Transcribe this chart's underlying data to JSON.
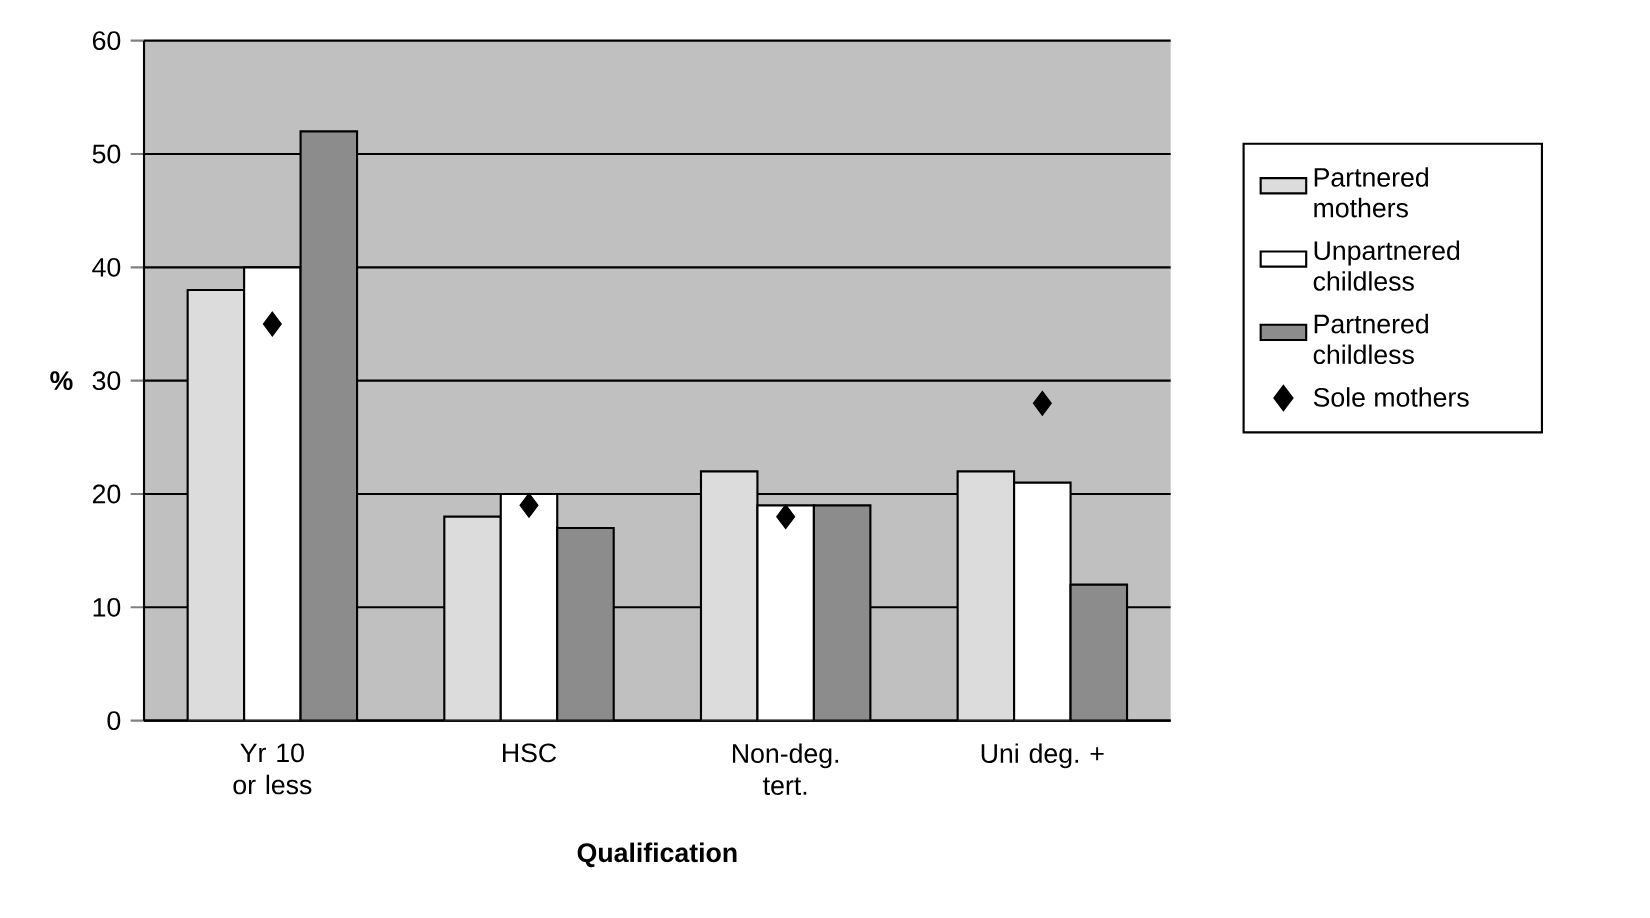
{
  "chart_data": {
    "type": "bar",
    "xlabel": "Qualification",
    "ylabel": "%",
    "categories": [
      "Yr 10 or less",
      "HSC",
      "Non-deg. tert.",
      "Uni deg. +"
    ],
    "series": [
      {
        "name": "Partnered mothers",
        "color": "#dcdcdc",
        "values": [
          38,
          18,
          22,
          22
        ]
      },
      {
        "name": "Unpartnered childless",
        "color": "#ffffff",
        "values": [
          40,
          20,
          19,
          21
        ]
      },
      {
        "name": "Partnered childless",
        "color": "#8c8c8c",
        "values": [
          52,
          17,
          19,
          12
        ]
      },
      {
        "name": "Sole mothers",
        "type": "scatter",
        "marker": "diamond",
        "color": "#000000",
        "x": [
          "Yr 10 or less",
          "HSC",
          "Non-deg. tert.",
          "Uni deg. +"
        ],
        "values": [
          35,
          19,
          18,
          28
        ]
      }
    ],
    "ylim": [
      0,
      60
    ],
    "yticks": [
      0,
      10,
      20,
      30,
      40,
      50,
      60
    ],
    "grid": "y",
    "legend": "right"
  }
}
